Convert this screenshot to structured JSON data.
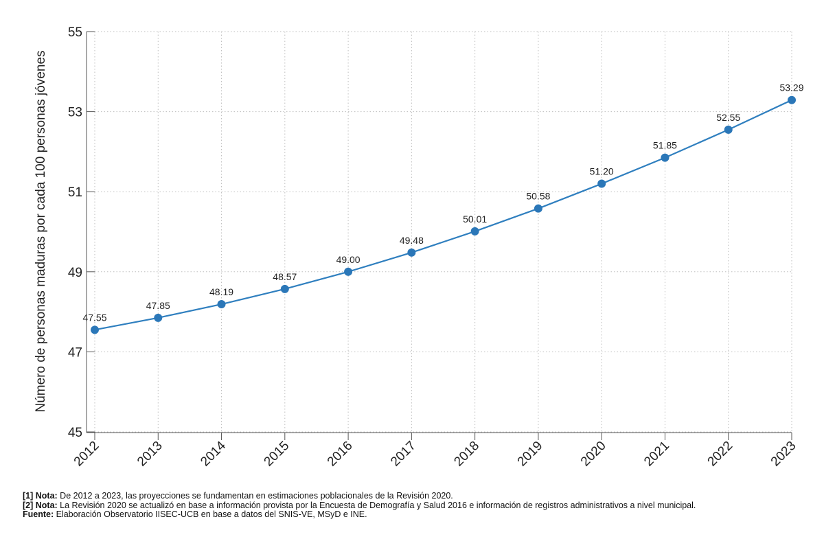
{
  "chart_data": {
    "type": "line",
    "title": "",
    "xlabel": "",
    "ylabel": "Número de personas maduras por cada 100 personas jóvenes",
    "categories": [
      "2012",
      "2013",
      "2014",
      "2015",
      "2016",
      "2017",
      "2018",
      "2019",
      "2020",
      "2021",
      "2022",
      "2023"
    ],
    "series": [
      {
        "values": [
          47.55,
          47.85,
          48.19,
          48.57,
          49.0,
          49.48,
          50.01,
          50.58,
          51.2,
          51.85,
          52.55,
          53.29
        ]
      }
    ],
    "data_labels": [
      "47.55",
      "47.85",
      "48.19",
      "48.57",
      "49.00",
      "49.48",
      "50.01",
      "50.58",
      "51.20",
      "51.85",
      "52.55",
      "53.29"
    ],
    "y_ticks": [
      "45",
      "47",
      "49",
      "51",
      "53",
      "55"
    ],
    "ylim": [
      45,
      55
    ],
    "grid": true,
    "legend": "none",
    "colors": {
      "line": "#2f7fbf",
      "marker": "#2b77b8",
      "grid": "#bdbdbd",
      "axis": "#555555"
    }
  },
  "notes": [
    {
      "key": "[1] Nota:",
      "text": " De 2012 a 2023, las proyecciones se fundamentan en estimaciones poblacionales de la Revisión 2020."
    },
    {
      "key": "[2] Nota:",
      "text": " La Revisión 2020 se actualizó en base a información provista por la Encuesta de Demografía y Salud 2016 e información de registros administrativos a nivel municipal."
    },
    {
      "key": "Fuente:",
      "text": " Elaboración Observatorio IISEC-UCB en base a datos del SNIS-VE, MSyD e INE."
    }
  ]
}
